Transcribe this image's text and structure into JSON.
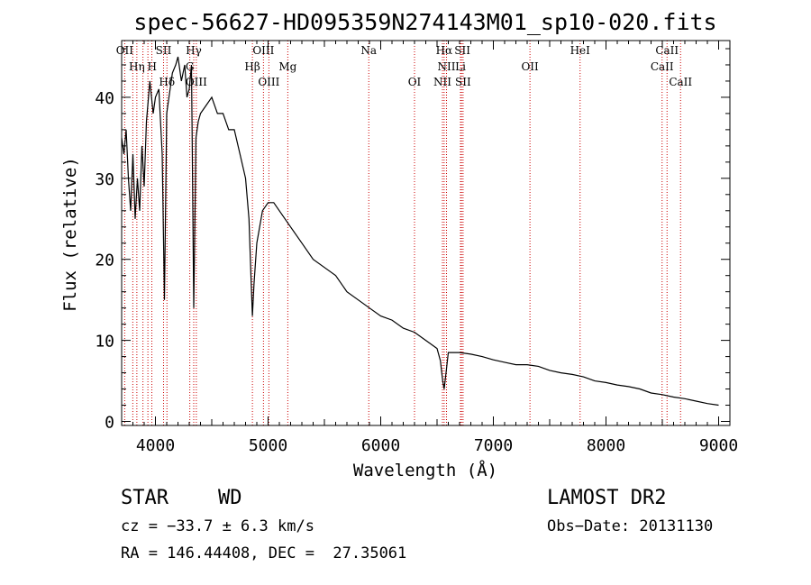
{
  "chart_data": {
    "type": "line",
    "title": "spec-56627-HD095359N274143M01_sp10-020.fits",
    "xlabel": "Wavelength (Å)",
    "ylabel": "Flux (relative)",
    "xlim": [
      3700,
      9100
    ],
    "ylim": [
      -0.5,
      47
    ],
    "xticks": [
      4000,
      5000,
      6000,
      7000,
      8000,
      9000
    ],
    "yticks": [
      0,
      10,
      20,
      30,
      40
    ],
    "grid": false,
    "series": [
      {
        "x": [
          3700,
          3720,
          3740,
          3760,
          3780,
          3800,
          3820,
          3840,
          3860,
          3880,
          3900,
          3920,
          3950,
          3980,
          4000,
          4030,
          4060,
          4080,
          4100,
          4120,
          4150,
          4180,
          4200,
          4230,
          4260,
          4280,
          4300,
          4320,
          4340,
          4360,
          4380,
          4400,
          4450,
          4500,
          4550,
          4600,
          4650,
          4700,
          4750,
          4800,
          4830,
          4850,
          4861,
          4875,
          4900,
          4950,
          5000,
          5050,
          5100,
          5200,
          5300,
          5400,
          5500,
          5600,
          5700,
          5800,
          5900,
          6000,
          6100,
          6200,
          6300,
          6400,
          6500,
          6530,
          6550,
          6563,
          6580,
          6600,
          6650,
          6700,
          6800,
          6900,
          7000,
          7100,
          7200,
          7300,
          7400,
          7500,
          7600,
          7700,
          7800,
          7900,
          8000,
          8100,
          8200,
          8300,
          8400,
          8500,
          8600,
          8700,
          8800,
          8900,
          9000
        ],
        "y": [
          35,
          33,
          36,
          30,
          26,
          33,
          25,
          30,
          26,
          34,
          29,
          37,
          42,
          38,
          40,
          41,
          33,
          15,
          38,
          40,
          43,
          44,
          45,
          42,
          44,
          40,
          41,
          44,
          14,
          35,
          37,
          38,
          39,
          40,
          38,
          38,
          36,
          36,
          33,
          30,
          25,
          17,
          13,
          17,
          22,
          26,
          27,
          27,
          26,
          24,
          22,
          20,
          19,
          18,
          16,
          15,
          14,
          13,
          12.5,
          11.5,
          11,
          10,
          9,
          7.5,
          5,
          4,
          6,
          8.5,
          8.5,
          8.5,
          8.3,
          8,
          7.6,
          7.3,
          7,
          7,
          6.8,
          6.3,
          6,
          5.8,
          5.5,
          5,
          4.8,
          4.5,
          4.3,
          4,
          3.5,
          3.3,
          3,
          2.8,
          2.5,
          2.2,
          2
        ]
      }
    ],
    "annotations": [
      {
        "text": "OII",
        "x": 3727,
        "row": 0
      },
      {
        "text": "Hη",
        "x": 3835,
        "row": 1
      },
      {
        "text": "H",
        "x": 3970,
        "row": 1
      },
      {
        "text": "SII",
        "x": 4072,
        "row": 0
      },
      {
        "text": "Hγ",
        "x": 4340,
        "row": 0
      },
      {
        "text": "Hδ",
        "x": 4102,
        "row": 2
      },
      {
        "text": "G",
        "x": 4305,
        "row": 1
      },
      {
        "text": "OIII",
        "x": 4363,
        "row": 2
      },
      {
        "text": "OIII",
        "x": 4959,
        "row": 0
      },
      {
        "text": "Hβ",
        "x": 4861,
        "row": 1
      },
      {
        "text": "Mg",
        "x": 5175,
        "row": 1
      },
      {
        "text": "OIII",
        "x": 5007,
        "row": 2
      },
      {
        "text": "Na",
        "x": 5894,
        "row": 0
      },
      {
        "text": "OI",
        "x": 6300,
        "row": 2
      },
      {
        "text": "Hα",
        "x": 6563,
        "row": 0
      },
      {
        "text": "SII",
        "x": 6725,
        "row": 0
      },
      {
        "text": "NII",
        "x": 6584,
        "row": 1
      },
      {
        "text": "Li",
        "x": 6708,
        "row": 1
      },
      {
        "text": "NII",
        "x": 6548,
        "row": 2
      },
      {
        "text": "SII",
        "x": 6731,
        "row": 2
      },
      {
        "text": "OII",
        "x": 7325,
        "row": 1
      },
      {
        "text": "HeI",
        "x": 7770,
        "row": 0
      },
      {
        "text": "CaII",
        "x": 8542,
        "row": 0
      },
      {
        "text": "CaII",
        "x": 8498,
        "row": 1
      },
      {
        "text": "CaII",
        "x": 8662,
        "row": 2
      }
    ],
    "vlines": [
      3727,
      3799,
      3835,
      3889,
      3933,
      3968,
      4072,
      4102,
      4305,
      4340,
      4363,
      4861,
      4959,
      5007,
      5175,
      5894,
      6300,
      6548,
      6563,
      6584,
      6708,
      6717,
      6731,
      7325,
      7770,
      8498,
      8542,
      8662
    ],
    "vlines_color": "#cc0000",
    "line_color": "#000000"
  },
  "info": {
    "class": "STAR",
    "subclass": "WD",
    "survey": "LAMOST DR2",
    "cz": "cz = −33.7 ± 6.3 km/s",
    "obs_date": "Obs−Date: 20131130",
    "radec": "RA = 146.44408, DEC =  27.35061"
  }
}
